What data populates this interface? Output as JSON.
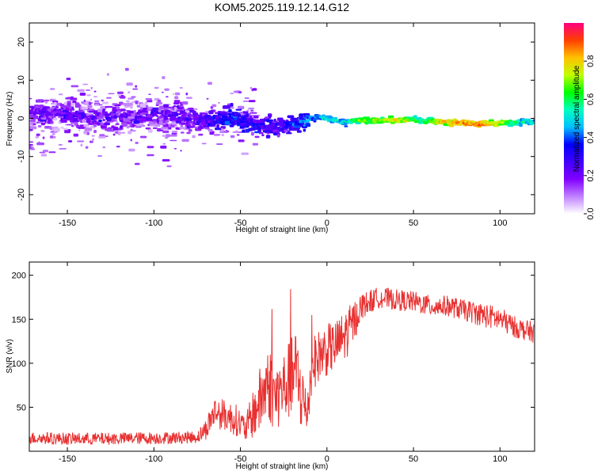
{
  "title": "KOM5.2025.119.12.14.G12",
  "chart_data": [
    {
      "type": "heatmap",
      "xlabel": "Height of straight line (km)",
      "ylabel": "Frequency (Hz)",
      "xlim": [
        -172,
        120
      ],
      "ylim": [
        -25,
        25
      ],
      "x_ticks": [
        -150,
        -100,
        -50,
        0,
        50,
        100
      ],
      "y_ticks": [
        -20,
        -10,
        0,
        10,
        20
      ],
      "colorbar": {
        "label": "Normalized spectral amplitude",
        "range": [
          0,
          1
        ],
        "ticks": [
          0.0,
          0.2,
          0.4,
          0.6,
          0.8
        ],
        "tick_labels": [
          "0.0",
          "0.2",
          "0.4",
          "0.6",
          "0.8"
        ],
        "colormap": [
          "#ffffff",
          "#c080ff",
          "#8000ff",
          "#4000ff",
          "#0000ff",
          "#00c0ff",
          "#00ffc0",
          "#00ff00",
          "#c0ff00",
          "#ffc000",
          "#ff4000",
          "#ff0080"
        ]
      },
      "ridge": [
        {
          "x": -170,
          "y": 1.5,
          "a": 0.2
        },
        {
          "x": -150,
          "y": 1.0,
          "a": 0.22
        },
        {
          "x": -130,
          "y": 0.0,
          "a": 0.22
        },
        {
          "x": -110,
          "y": 0.5,
          "a": 0.2
        },
        {
          "x": -90,
          "y": 1.0,
          "a": 0.22
        },
        {
          "x": -75,
          "y": -0.5,
          "a": 0.22
        },
        {
          "x": -65,
          "y": -1.0,
          "a": 0.32
        },
        {
          "x": -55,
          "y": 0.5,
          "a": 0.35
        },
        {
          "x": -45,
          "y": -1.5,
          "a": 0.32
        },
        {
          "x": -35,
          "y": -2.0,
          "a": 0.28
        },
        {
          "x": -25,
          "y": -2.5,
          "a": 0.3
        },
        {
          "x": -15,
          "y": -1.0,
          "a": 0.38
        },
        {
          "x": -5,
          "y": 0.5,
          "a": 0.45
        },
        {
          "x": 0,
          "y": 0.0,
          "a": 0.55
        },
        {
          "x": 10,
          "y": -1.0,
          "a": 0.5
        },
        {
          "x": 20,
          "y": -0.5,
          "a": 0.7
        },
        {
          "x": 40,
          "y": -0.5,
          "a": 0.78
        },
        {
          "x": 55,
          "y": -0.5,
          "a": 0.6
        },
        {
          "x": 70,
          "y": -1.0,
          "a": 0.85
        },
        {
          "x": 90,
          "y": -1.5,
          "a": 0.9
        },
        {
          "x": 110,
          "y": -1.0,
          "a": 0.6
        },
        {
          "x": 120,
          "y": -1.0,
          "a": 0.5
        }
      ]
    },
    {
      "type": "line",
      "xlabel": "Height of straight line (km)",
      "ylabel": "SNR (v/v)",
      "xlim": [
        -172,
        120
      ],
      "ylim": [
        0,
        215
      ],
      "x_ticks": [
        -150,
        -100,
        -50,
        0,
        50,
        100
      ],
      "y_ticks": [
        50,
        100,
        150,
        200
      ],
      "line_color": "#e83030",
      "envelope": [
        {
          "x": -172,
          "y": 15,
          "spread": 7
        },
        {
          "x": -140,
          "y": 14,
          "spread": 7
        },
        {
          "x": -100,
          "y": 15,
          "spread": 7
        },
        {
          "x": -75,
          "y": 16,
          "spread": 7
        },
        {
          "x": -70,
          "y": 25,
          "spread": 12
        },
        {
          "x": -65,
          "y": 45,
          "spread": 18
        },
        {
          "x": -58,
          "y": 40,
          "spread": 18
        },
        {
          "x": -52,
          "y": 35,
          "spread": 18
        },
        {
          "x": -47,
          "y": 25,
          "spread": 15
        },
        {
          "x": -42,
          "y": 45,
          "spread": 30
        },
        {
          "x": -38,
          "y": 60,
          "spread": 40
        },
        {
          "x": -34,
          "y": 80,
          "spread": 45
        },
        {
          "x": -30,
          "y": 60,
          "spread": 40
        },
        {
          "x": -26,
          "y": 70,
          "spread": 40
        },
        {
          "x": -22,
          "y": 80,
          "spread": 45
        },
        {
          "x": -18,
          "y": 90,
          "spread": 50
        },
        {
          "x": -14,
          "y": 60,
          "spread": 45
        },
        {
          "x": -12,
          "y": 40,
          "spread": 30
        },
        {
          "x": -8,
          "y": 100,
          "spread": 30
        },
        {
          "x": -4,
          "y": 110,
          "spread": 30
        },
        {
          "x": 0,
          "y": 115,
          "spread": 30
        },
        {
          "x": 5,
          "y": 120,
          "spread": 28
        },
        {
          "x": 10,
          "y": 130,
          "spread": 30
        },
        {
          "x": 15,
          "y": 145,
          "spread": 25
        },
        {
          "x": 20,
          "y": 165,
          "spread": 15
        },
        {
          "x": 30,
          "y": 175,
          "spread": 12
        },
        {
          "x": 40,
          "y": 172,
          "spread": 12
        },
        {
          "x": 50,
          "y": 170,
          "spread": 12
        },
        {
          "x": 60,
          "y": 165,
          "spread": 12
        },
        {
          "x": 70,
          "y": 165,
          "spread": 12
        },
        {
          "x": 80,
          "y": 160,
          "spread": 12
        },
        {
          "x": 90,
          "y": 155,
          "spread": 14
        },
        {
          "x": 100,
          "y": 150,
          "spread": 14
        },
        {
          "x": 110,
          "y": 140,
          "spread": 12
        },
        {
          "x": 120,
          "y": 135,
          "spread": 12
        }
      ]
    }
  ]
}
